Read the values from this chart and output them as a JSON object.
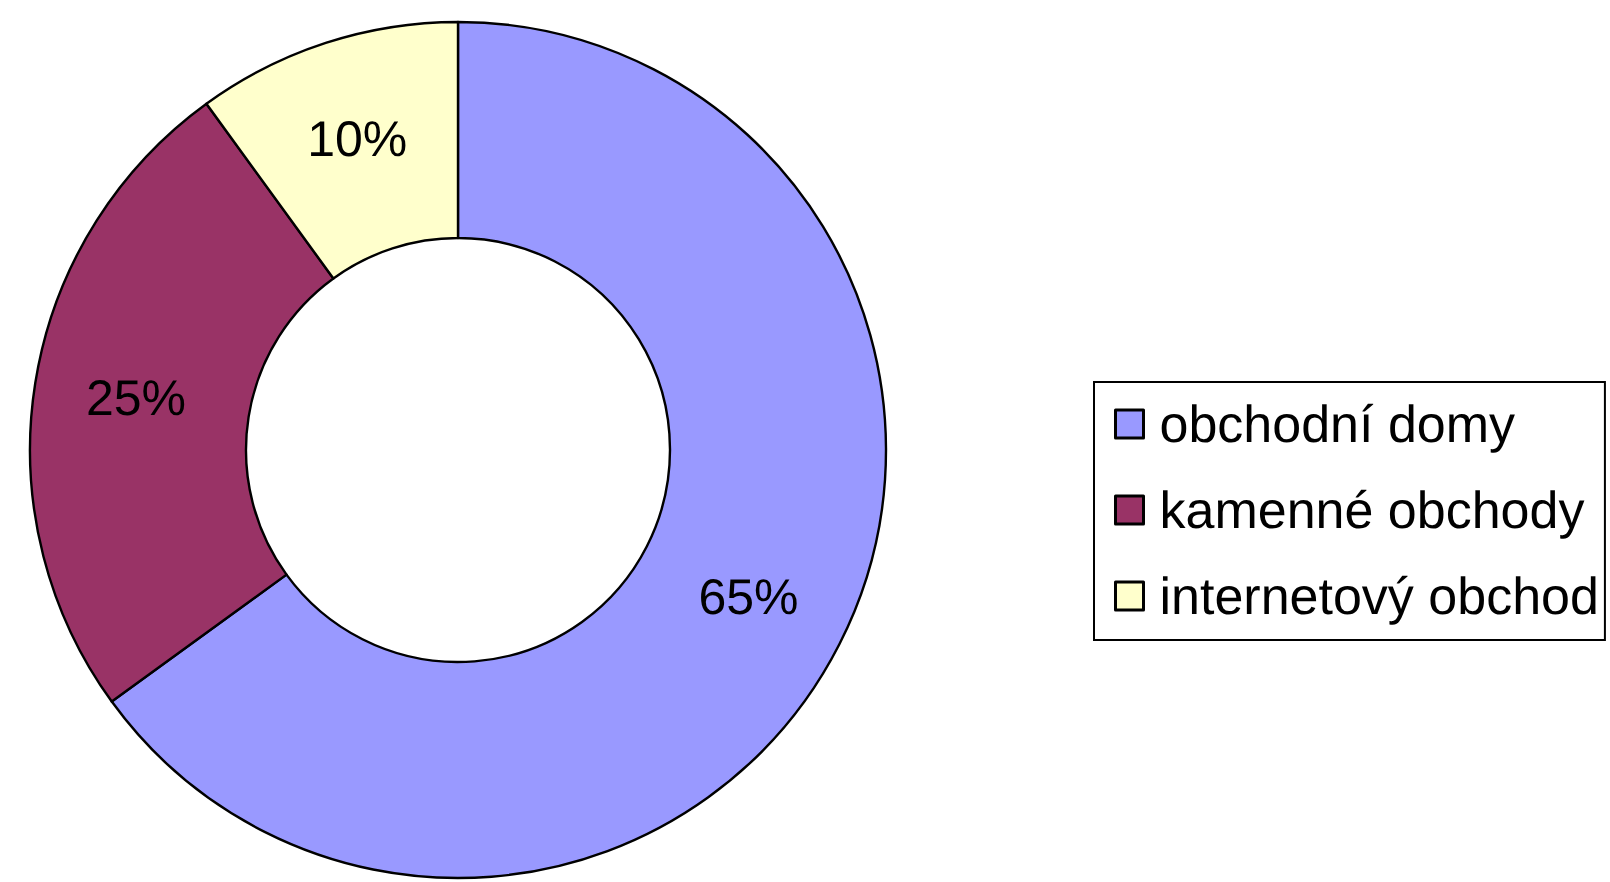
{
  "chart_data": {
    "type": "donut",
    "categories": [
      "obchodní domy",
      "kamenné obchody",
      "internetový obchod"
    ],
    "values": [
      65,
      25,
      10
    ],
    "value_labels": [
      "65%",
      "25%",
      "10%"
    ],
    "colors": [
      "#9999ff",
      "#993366",
      "#ffffcc"
    ],
    "legend": "right"
  }
}
